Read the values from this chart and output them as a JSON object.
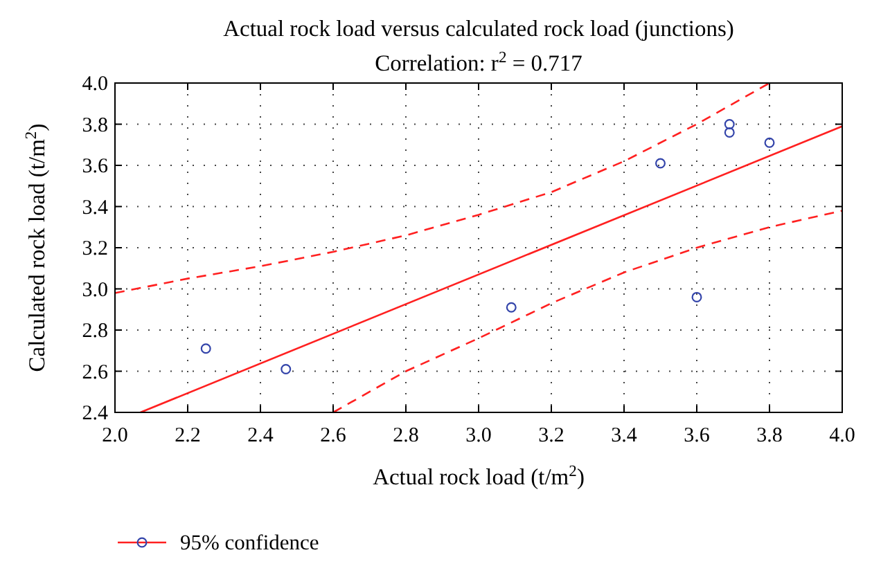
{
  "chart_data": {
    "type": "scatter",
    "title": "Actual rock load versus calculated rock load (junctions)",
    "subtitle": "Correlation: r$^{2}$ = 0.717",
    "xlabel": "Actual rock load (t/m$^{2}$)",
    "ylabel": "Calculated rock load (t/m$^{2}$)",
    "xlim": [
      2.0,
      4.0
    ],
    "xticks": [
      {
        "value": 2,
        "label": "2.0"
      },
      2.2,
      2.4,
      2.6,
      2.8,
      {
        "value": 3,
        "label": "3.0"
      },
      3.2,
      3.4,
      3.6,
      3.8,
      {
        "value": 4,
        "label": "4.0"
      }
    ],
    "ylim": [
      2.4,
      4.0
    ],
    "yticks": [
      2.4,
      2.6,
      2.8,
      {
        "value": 3,
        "label": "3.0"
      },
      3.2,
      3.4,
      3.6,
      3.8,
      {
        "value": 4,
        "label": "4.0"
      }
    ],
    "grid": true,
    "legend": "bottom left",
    "series": [
      {
        "color": "#3344aa",
        "marker": "circle",
        "x": [
          2.25,
          2.47,
          3.09,
          3.5,
          3.6,
          3.69,
          3.69,
          3.8
        ],
        "values": [
          2.71,
          2.61,
          2.91,
          3.61,
          2.96,
          3.8,
          3.76,
          3.71
        ]
      },
      {
        "type": "line",
        "name": "95% confidence",
        "color": "#ff2020",
        "line_style": "solid",
        "x": [
          2.07,
          4.0
        ],
        "values": [
          2.4,
          3.79
        ]
      },
      {
        "type": "line",
        "color": "#ff2020",
        "line_style": "dashed",
        "x": [
          2.0,
          2.2,
          2.4,
          2.6,
          2.8,
          3.0,
          3.2,
          3.4,
          3.6,
          3.8
        ],
        "values": [
          2.98,
          3.05,
          3.11,
          3.18,
          3.26,
          3.36,
          3.47,
          3.62,
          3.8,
          4.0
        ]
      },
      {
        "type": "line",
        "color": "#ff2020",
        "line_style": "dashed",
        "x": [
          2.6,
          2.8,
          3.0,
          3.2,
          3.4,
          3.6,
          3.8,
          4.0
        ],
        "values": [
          2.4,
          2.6,
          2.76,
          2.93,
          3.08,
          3.2,
          3.3,
          3.38
        ]
      }
    ]
  }
}
